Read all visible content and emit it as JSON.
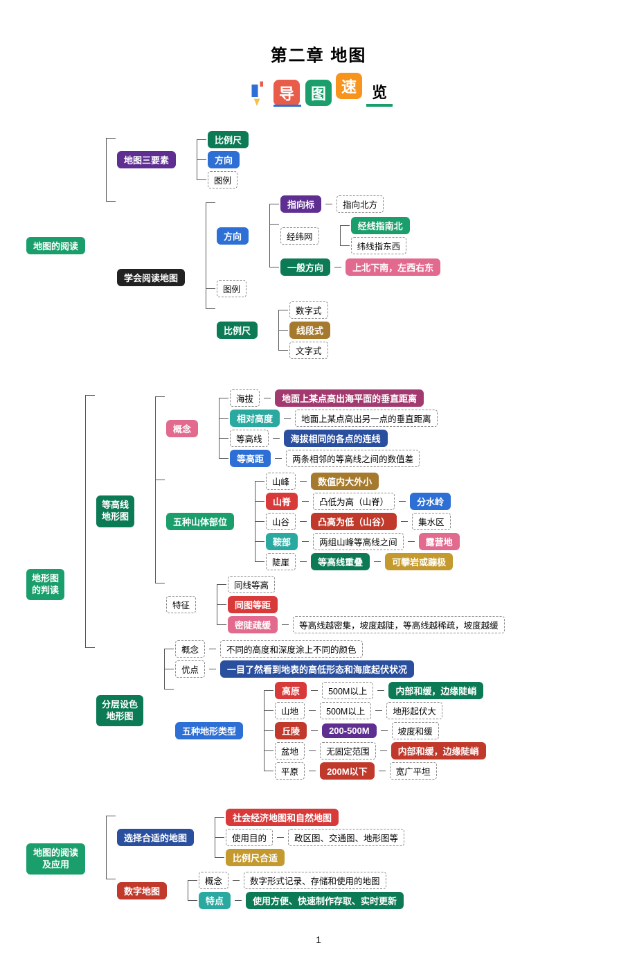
{
  "title": "第二章  地图",
  "banner": {
    "chars": [
      "导",
      "图",
      "速",
      "览"
    ],
    "colors": [
      "#e85c4a",
      "#1a9e6b",
      "#f7941e",
      "#000"
    ]
  },
  "pagenum": "1",
  "colors": {
    "green": "#1a9e6b",
    "blue": "#2d6fd4",
    "darkblue": "#2a4f9e",
    "purple": "#5e2e91",
    "red": "#d83a3a",
    "brown": "#a67a2e",
    "orange": "#f7941e",
    "teal": "#2aa9a0",
    "pink": "#e26a8e",
    "darkpurple": "#6b2c91",
    "wine": "#a33a6f",
    "gold": "#c49a2e",
    "olive": "#6b7a1a",
    "slate": "#4a6a7a",
    "crimson": "#c0392b",
    "navy": "#2c3e70",
    "magenta": "#b33a7a",
    "darkgreen": "#0b7a55",
    "grey": "#555"
  },
  "s1": {
    "root": "地图的阅读",
    "n1": "地图三要素",
    "n1c": [
      "比例尺",
      "方向",
      "图例"
    ],
    "n2": "学会阅读地图",
    "dir": {
      "label": "方向",
      "a": {
        "l": "指向标",
        "t": "指向北方"
      },
      "b": {
        "l": "经纬网",
        "t1": "经线指南北",
        "t2": "纬线指东西"
      },
      "c": {
        "l": "一般方向",
        "t": "上北下南，左西右东"
      }
    },
    "legend": "图例",
    "scale": {
      "label": "比例尺",
      "items": [
        "数字式",
        "线段式",
        "文字式"
      ]
    }
  },
  "s2": {
    "root": "地形图的判读",
    "a": {
      "label": "等高线地形图",
      "concept": {
        "label": "概念",
        "items": [
          {
            "l": "海拔",
            "t": "地面上某点高出海平面的垂直距离",
            "tc": "#a33a6f"
          },
          {
            "l": "相对高度",
            "lc": "#2aa9a0",
            "t": "地面上某点高出另一点的垂直距离"
          },
          {
            "l": "等高线",
            "t": "海拔相同的各点的连线",
            "tc": "#2a4f9e"
          },
          {
            "l": "等高距",
            "lc": "#2d6fd4",
            "t": "两条相邻的等高线之间的数值差"
          }
        ]
      },
      "five": {
        "label": "五种山体部位",
        "items": [
          {
            "l": "山峰",
            "t": "数值内大外小",
            "tc": "#a67a2e"
          },
          {
            "l": "山脊",
            "lc": "#d83a3a",
            "t": "凸低为高（山脊）",
            "ex": "分水岭",
            "exc": "#2d6fd4"
          },
          {
            "l": "山谷",
            "t": "凸高为低（山谷）",
            "tc": "#c0392b",
            "ex": "集水区"
          },
          {
            "l": "鞍部",
            "lc": "#2aa9a0",
            "t": "两组山峰等高线之间",
            "ex": "露营地",
            "exc": "#e26a8e"
          },
          {
            "l": "陡崖",
            "t": "等高线重叠",
            "tc": "#0b7a55",
            "ex": "可攀岩或蹦极",
            "exc": "#c49a2e"
          }
        ]
      },
      "feat": {
        "label": "特征",
        "items": [
          {
            "l": "同线等高"
          },
          {
            "l": "同图等距",
            "lc": "#d83a3a"
          },
          {
            "l": "密陡疏缓",
            "lc": "#e26a8e",
            "t": "等高线越密集，坡度越陡，等高线越稀疏，坡度越缓"
          }
        ]
      }
    },
    "b": {
      "label": "分层设色地形图",
      "concept": {
        "l": "概念",
        "t": "不同的高度和深度涂上不同的颜色"
      },
      "adv": {
        "l": "优点",
        "t": "一目了然看到地表的高低形态和海底起伏状况",
        "tc": "#2a4f9e"
      },
      "five": {
        "label": "五种地形类型",
        "items": [
          {
            "l": "高原",
            "lc": "#d83a3a",
            "m": "500M以上",
            "t": "内部和缓，边缘陡峭",
            "tc": "#0b7a55"
          },
          {
            "l": "山地",
            "m": "500M以上",
            "t": "地形起伏大"
          },
          {
            "l": "丘陵",
            "lc": "#c0392b",
            "m": "200-500M",
            "mc": "#5e2e91",
            "t": "坡度和缓"
          },
          {
            "l": "盆地",
            "m": "无固定范围",
            "t": "内部和缓，边缘陡峭",
            "tc": "#c0392b"
          },
          {
            "l": "平原",
            "m": "200M以下",
            "mc": "#c0392b",
            "t": "宽广平坦"
          }
        ]
      }
    }
  },
  "s3": {
    "root": "地图的阅读及应用",
    "a": {
      "label": "选择合适的地图",
      "items": [
        {
          "t": "社会经济地图和自然地图",
          "tc": "#d83a3a"
        },
        {
          "l": "使用目的",
          "t": "政区图、交通图、地形图等"
        },
        {
          "t": "比例尺合适",
          "tc": "#c49a2e"
        }
      ]
    },
    "b": {
      "label": "数字地图",
      "items": [
        {
          "l": "概念",
          "t": "数字形式记录、存储和使用的地图"
        },
        {
          "l": "特点",
          "lc": "#2aa9a0",
          "t": "使用方便、快速制作存取、实时更新",
          "tc": "#0b7a55"
        }
      ]
    }
  }
}
